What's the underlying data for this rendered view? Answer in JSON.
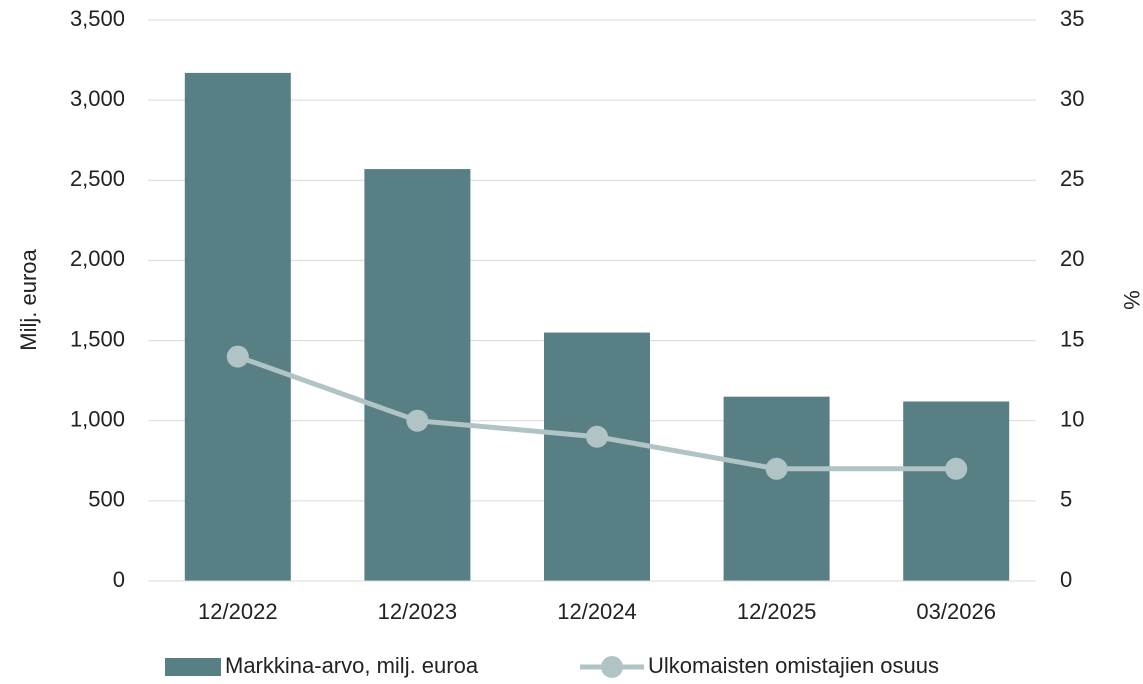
{
  "chart_data": {
    "type": "bar",
    "categories": [
      "12/2022",
      "12/2023",
      "12/2024",
      "12/2025",
      "03/2026"
    ],
    "series": [
      {
        "name": "Markkina-arvo, milj. euroa",
        "color": "#587f84",
        "values": [
          3170,
          2570,
          1550,
          1150,
          1120
        ]
      },
      {
        "name": "Ulkomaisten omistajien osuus",
        "color": "#b0c4c6",
        "type": "line",
        "axis": "y2",
        "values": [
          14,
          10,
          9,
          7,
          7
        ]
      }
    ],
    "ylabel": "Milj. euroa",
    "y2label": "%",
    "ylim": [
      0,
      3500
    ],
    "yticks": [
      0,
      500,
      {
        "value": 1000,
        "label": "1,000"
      },
      {
        "value": 1500,
        "label": "1,500"
      },
      {
        "value": 2000,
        "label": "2,000"
      },
      {
        "value": 2500,
        "label": "2,500"
      },
      {
        "value": 3000,
        "label": "3,000"
      },
      {
        "value": 3500,
        "label": "3,500"
      }
    ],
    "y2lim": [
      0,
      35
    ],
    "y2ticks": [
      0,
      5,
      10,
      15,
      20,
      25,
      30,
      35
    ],
    "grid": true,
    "legend": "bottom"
  }
}
